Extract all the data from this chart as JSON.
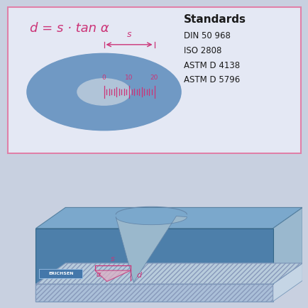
{
  "bg_color": "#c8d0e0",
  "top_panel_bg": "#e4e8f4",
  "top_panel_border": "#e080a8",
  "formula_text": "d = s · tan α",
  "formula_color": "#cc3377",
  "standards_title": "Standards",
  "standards_lines": [
    "DIN 50 968",
    "ISO 2808",
    "ASTM D 4138",
    "ASTM D 5796"
  ],
  "standards_color": "#1a1a1a",
  "disk_color": "#7099c4",
  "hole_color": "#b0c4d8",
  "scale_color": "#cc3377",
  "arrow_color": "#cc3377",
  "box_top_color": "#7ba8cc",
  "box_front_color": "#4d7faa",
  "box_right_color": "#9ab8ce",
  "sub_front_color": "#aabfd8",
  "sub_hatch_color": "#8899bb",
  "wedge_fill": "#c8b8d0",
  "cone_fill": "#9ab8cc",
  "label_d": "d",
  "label_s": "s",
  "label_alpha": "α",
  "erichsen_color": "#ffffff",
  "erichsen_bg": "#4477aa",
  "erichsen_text": "ERICHSEN"
}
